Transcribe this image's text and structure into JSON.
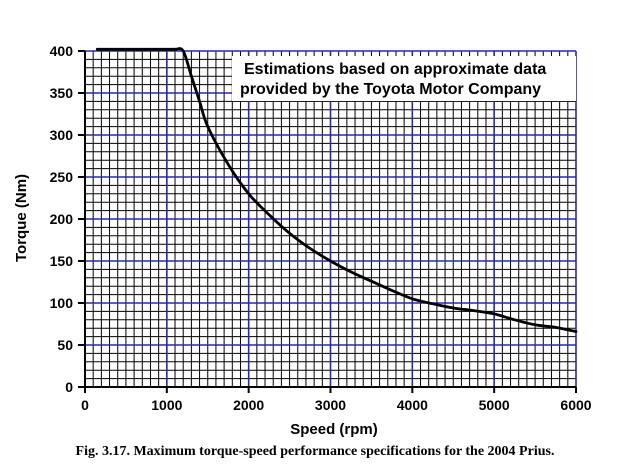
{
  "chart_data": {
    "type": "line",
    "xlabel": "Speed (rpm)",
    "ylabel": "Torque (Nm)",
    "xlim": [
      0,
      6000
    ],
    "ylim": [
      0,
      400
    ],
    "x_ticks": [
      0,
      1000,
      2000,
      3000,
      4000,
      5000,
      6000
    ],
    "y_ticks": [
      0,
      50,
      100,
      150,
      200,
      250,
      300,
      350,
      400
    ],
    "x_tick_labels": [
      "0",
      "1000",
      "2000",
      "3000",
      "4000",
      "5000",
      "6000"
    ],
    "y_tick_labels": [
      "0",
      "50",
      "100",
      "150",
      "200",
      "250",
      "300",
      "350",
      "400"
    ],
    "grid": true,
    "series": [
      {
        "color": "#000000",
        "x": [
          150,
          1000,
          1100,
          1200,
          1300,
          1400,
          1500,
          1750,
          2000,
          2250,
          2500,
          2750,
          3000,
          3250,
          3500,
          3750,
          4000,
          4250,
          4500,
          4750,
          5000,
          5250,
          5500,
          5750,
          6000
        ],
        "y": [
          402,
          402,
          402,
          400,
          370,
          340,
          310,
          265,
          230,
          205,
          183,
          165,
          150,
          137,
          126,
          115,
          105,
          99,
          94,
          91,
          87,
          80,
          74,
          71,
          66
        ]
      }
    ],
    "annotation": [
      "Estimations based on approximate data",
      "provided by the Toyota Motor Company"
    ]
  },
  "caption": "Fig. 3.17. Maximum torque-speed performance specifications for the 2004 Prius.",
  "colors": {
    "major_grid": "#2828a8",
    "minor_grid": "#000000",
    "curve": "#000000"
  }
}
